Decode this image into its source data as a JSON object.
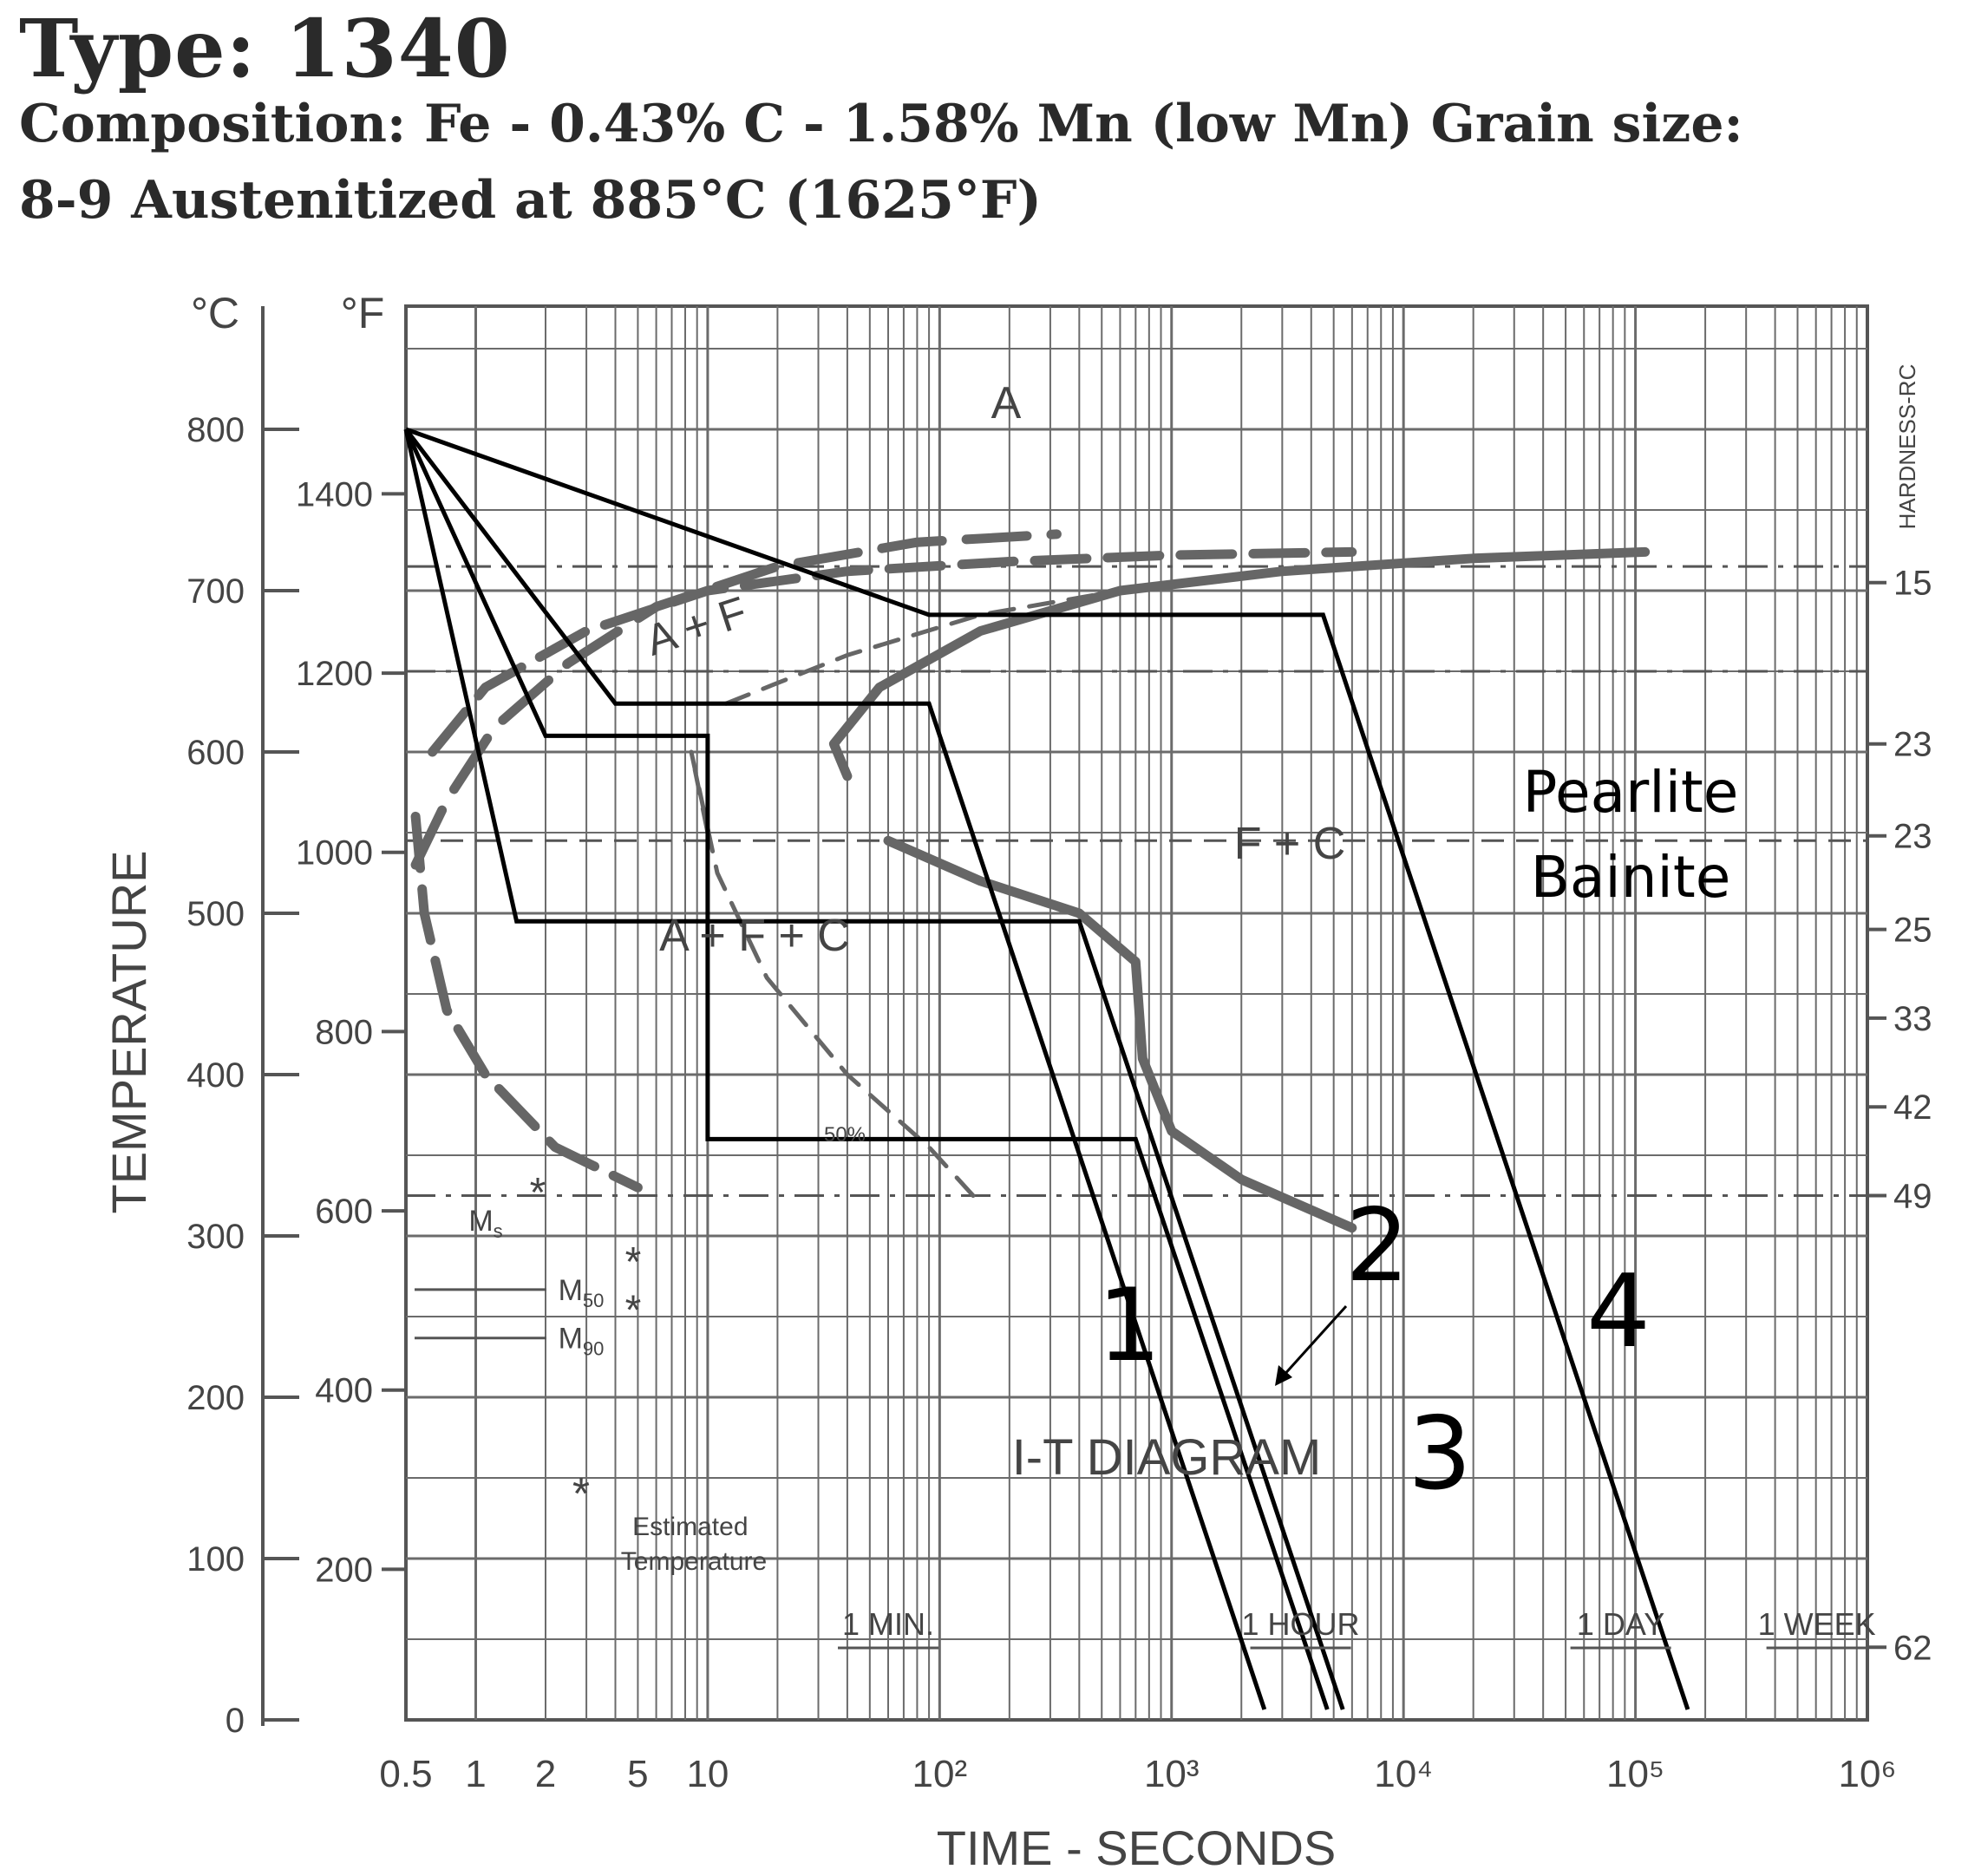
{
  "header": {
    "title": "Type: 1340",
    "composition_line1": "Composition: Fe - 0.43% C - 1.58% Mn (low Mn) Grain size:",
    "composition_line2": "8-9 Austenitized at 885°C (1625°F)"
  },
  "chart_data": {
    "type": "line",
    "title": "Type: 1340",
    "diagram_label": "I-T DIAGRAM",
    "xlabel": "TIME - SECONDS",
    "ylabel": "TEMPERATURE",
    "right_axis_label": "HARDNESS-RC",
    "x_scale": "log",
    "xlim": [
      0.5,
      1000000
    ],
    "ylim_celsius": [
      0,
      900
    ],
    "grid": true,
    "x_ticks": [
      {
        "value": 0.5,
        "label": "0.5"
      },
      {
        "value": 1,
        "label": "1"
      },
      {
        "value": 2,
        "label": "2"
      },
      {
        "value": 5,
        "label": "5"
      },
      {
        "value": 10,
        "label": "10"
      },
      {
        "value": 100,
        "label": "10²"
      },
      {
        "value": 1000,
        "label": "10³"
      },
      {
        "value": 10000,
        "label": "10⁴"
      },
      {
        "value": 100000,
        "label": "10⁵"
      },
      {
        "value": 1000000,
        "label": "10⁶"
      }
    ],
    "celsius_unit": "°C",
    "celsius_ticks": [
      0,
      100,
      200,
      300,
      400,
      500,
      600,
      700,
      800
    ],
    "fahrenheit_unit": "°F",
    "fahrenheit_ticks": [
      200,
      400,
      600,
      800,
      1000,
      1200,
      1400
    ],
    "time_markers": [
      {
        "label": "1 MIN.",
        "seconds": 60
      },
      {
        "label": "1 HOUR",
        "seconds": 3600
      },
      {
        "label": "1 DAY",
        "seconds": 86400
      },
      {
        "label": "1 WEEK",
        "seconds": 604800
      }
    ],
    "hardness_rc": [
      {
        "temp_c": 705,
        "value": "15"
      },
      {
        "temp_c": 605,
        "value": "23"
      },
      {
        "temp_c": 548,
        "value": "23"
      },
      {
        "temp_c": 490,
        "value": "25"
      },
      {
        "temp_c": 435,
        "value": "33"
      },
      {
        "temp_c": 380,
        "value": "42"
      },
      {
        "temp_c": 325,
        "value": "49"
      },
      {
        "temp_c": 45,
        "value": "62"
      }
    ],
    "region_labels": [
      "A",
      "A + F",
      "F + C",
      "A + F + C"
    ],
    "phase_labels": [
      "Pearlite",
      "Bainite"
    ],
    "martensite_points": [
      {
        "label": "Ms",
        "temp_c": 328
      },
      {
        "label": "M50",
        "temp_c": 285
      },
      {
        "label": "M90",
        "temp_c": 255
      }
    ],
    "percent_label": "50%",
    "legend_note": "Estimated Temperature",
    "legend_symbol": "*",
    "reference_lines_c": [
      {
        "style": "dash-dot",
        "temp_c": 715
      },
      {
        "style": "dash-dot",
        "temp_c": 650
      },
      {
        "style": "dashed",
        "temp_c": 545
      },
      {
        "style": "dash-dot",
        "temp_c": 325
      }
    ],
    "series": [
      {
        "curve": "ferrite-start",
        "points": [
          [
            0.55,
            530
          ],
          [
            0.75,
            570
          ],
          [
            1.2,
            615
          ],
          [
            2.5,
            655
          ],
          [
            6,
            690
          ],
          [
            20,
            715
          ],
          [
            80,
            730
          ],
          [
            320,
            735
          ]
        ]
      },
      {
        "curve": "transformation-start",
        "points": [
          [
            0.55,
            560
          ],
          [
            0.6,
            500
          ],
          [
            0.75,
            440
          ],
          [
            1.1,
            400
          ],
          [
            2.2,
            355
          ],
          [
            5,
            330
          ],
          [
            0.65,
            600
          ],
          [
            1.1,
            640
          ],
          [
            3,
            675
          ],
          [
            10,
            700
          ],
          [
            40,
            712
          ],
          [
            200,
            718
          ],
          [
            1000,
            722
          ],
          [
            6000,
            724
          ]
        ]
      },
      {
        "curve": "fifty-percent",
        "points": [
          [
            10,
            550
          ],
          [
            8.5,
            600
          ],
          [
            11,
            525
          ],
          [
            18,
            460
          ],
          [
            40,
            400
          ],
          [
            90,
            355
          ],
          [
            150,
            320
          ],
          [
            12,
            630
          ],
          [
            40,
            660
          ],
          [
            150,
            685
          ],
          [
            600,
            700
          ]
        ]
      },
      {
        "curve": "transformation-finish",
        "points": [
          [
            40,
            585
          ],
          [
            35,
            605
          ],
          [
            55,
            640
          ],
          [
            150,
            675
          ],
          [
            600,
            700
          ],
          [
            3000,
            712
          ],
          [
            20000,
            720
          ],
          [
            110000,
            724
          ],
          [
            60,
            545
          ],
          [
            150,
            520
          ],
          [
            400,
            500
          ],
          [
            700,
            470
          ],
          [
            750,
            410
          ],
          [
            1000,
            365
          ],
          [
            2000,
            335
          ],
          [
            6000,
            305
          ]
        ]
      },
      {
        "name": "1",
        "points": [
          [
            0.5,
            800
          ],
          [
            90,
            685
          ],
          [
            4500,
            685
          ],
          [
            4500,
            0
          ]
        ]
      },
      {
        "name": "2",
        "points": [
          [
            0.5,
            800
          ],
          [
            4,
            630
          ],
          [
            90,
            630
          ],
          [
            90,
            0
          ]
        ]
      },
      {
        "name": "3",
        "points": [
          [
            0.5,
            800
          ],
          [
            2,
            610
          ],
          [
            10,
            610
          ],
          [
            10,
            360
          ],
          [
            700,
            360
          ],
          [
            700,
            0
          ]
        ]
      },
      {
        "name": "4",
        "points": [
          [
            0.5,
            800
          ],
          [
            1.5,
            495
          ],
          [
            400,
            495
          ],
          [
            400,
            0
          ]
        ]
      }
    ]
  }
}
